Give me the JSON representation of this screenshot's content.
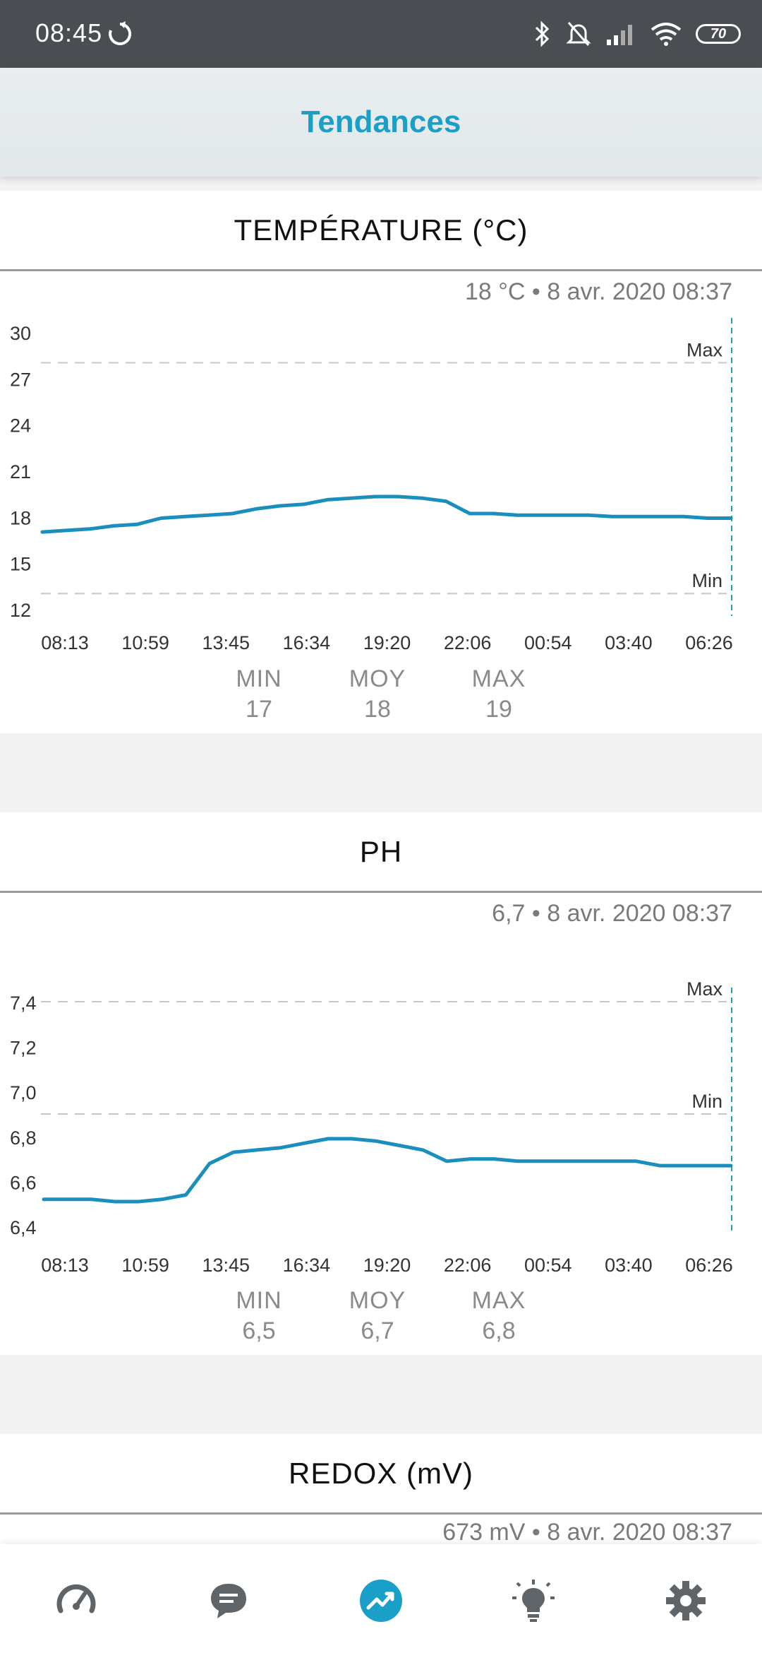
{
  "status_bar": {
    "time": "08:45",
    "battery": "70",
    "icons": [
      "sync-icon",
      "bluetooth-icon",
      "mute-icon",
      "signal-icon",
      "wifi-icon",
      "battery-icon"
    ]
  },
  "header": {
    "title": "Tendances"
  },
  "charts": [
    {
      "title": "TEMPÉRATURE (°C)",
      "latest": "18 °C • 8 avr. 2020 08:37",
      "stats": {
        "min_label": "MIN",
        "min": "17",
        "avg_label": "MOY",
        "avg": "18",
        "max_label": "MAX",
        "max": "19"
      }
    },
    {
      "title": "PH",
      "latest": "6,7 • 8 avr. 2020 08:37",
      "stats": {
        "min_label": "MIN",
        "min": "6,5",
        "avg_label": "MOY",
        "avg": "6,7",
        "max_label": "MAX",
        "max": "6,8"
      }
    },
    {
      "title": "REDOX (mV)",
      "latest": "673 mV • 8 avr. 2020 08:37"
    }
  ],
  "chart_data": [
    {
      "type": "line",
      "y_ticks": [
        "30",
        "27",
        "24",
        "21",
        "18",
        "15",
        "12"
      ],
      "ylim": [
        12,
        30
      ],
      "x_ticks": [
        "08:13",
        "10:59",
        "13:45",
        "16:34",
        "19:20",
        "22:06",
        "00:54",
        "03:40",
        "06:26"
      ],
      "max_line": {
        "label": "Max",
        "value": 28
      },
      "min_line": {
        "label": "Min",
        "value": 13
      },
      "series": [
        {
          "values": [
            17.0,
            17.1,
            17.2,
            17.4,
            17.5,
            17.9,
            18.0,
            18.1,
            18.2,
            18.5,
            18.7,
            18.8,
            19.1,
            19.2,
            19.3,
            19.3,
            19.2,
            19.0,
            18.2,
            18.2,
            18.1,
            18.1,
            18.1,
            18.1,
            18.0,
            18.0,
            18.0,
            18.0,
            17.9,
            17.9
          ]
        }
      ]
    },
    {
      "type": "line",
      "y_ticks": [
        "7,4",
        "7,2",
        "7,0",
        "6,8",
        "6,6",
        "6,4"
      ],
      "ylim": [
        6.4,
        7.4
      ],
      "x_ticks": [
        "08:13",
        "10:59",
        "13:45",
        "16:34",
        "19:20",
        "22:06",
        "00:54",
        "03:40",
        "06:26"
      ],
      "max_line": {
        "label": "Max",
        "value": 7.4
      },
      "min_line": {
        "label": "Min",
        "value": 6.9
      },
      "series": [
        {
          "values": [
            6.52,
            6.52,
            6.52,
            6.51,
            6.51,
            6.52,
            6.54,
            6.68,
            6.73,
            6.74,
            6.75,
            6.77,
            6.79,
            6.79,
            6.78,
            6.76,
            6.74,
            6.69,
            6.7,
            6.7,
            6.69,
            6.69,
            6.69,
            6.69,
            6.69,
            6.69,
            6.67,
            6.67,
            6.67,
            6.67
          ]
        }
      ]
    }
  ],
  "nav": [
    {
      "icon": "speedometer-icon",
      "active": false
    },
    {
      "icon": "chat-icon",
      "active": false
    },
    {
      "icon": "trends-icon",
      "active": true
    },
    {
      "icon": "lightbulb-icon",
      "active": false
    },
    {
      "icon": "gear-icon",
      "active": false
    }
  ],
  "colors": {
    "accent": "#1aa0c8",
    "line": "#1a8fbd",
    "statusbar": "#4a4d51"
  }
}
